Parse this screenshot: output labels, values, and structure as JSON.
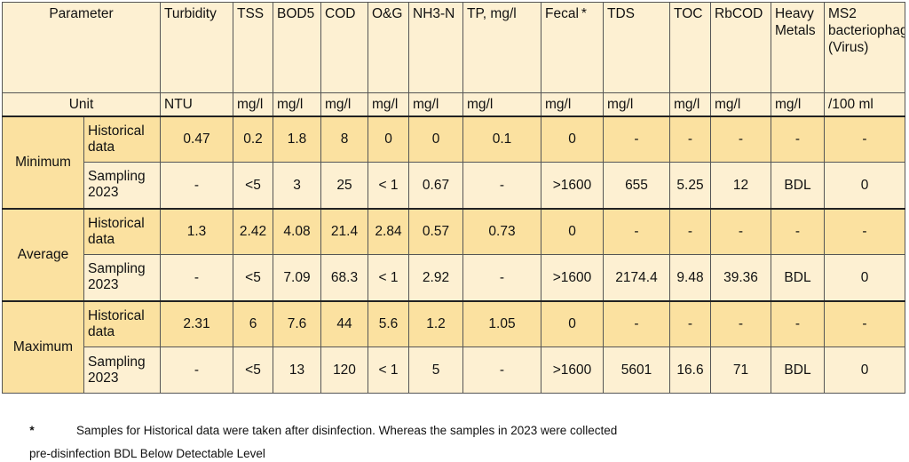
{
  "header": {
    "parameter": "Parameter",
    "columns": [
      "Turbidity",
      "TSS",
      "BOD5",
      "COD",
      "O&G",
      "NH3-N",
      "TP, mg/l",
      "Fecal",
      "TDS",
      "TOC",
      "RbCOD",
      "Heavy Metals",
      "MS2 bacteriophage (Virus)"
    ],
    "fecal_mark": "*",
    "unit_label": "Unit",
    "units": [
      "NTU",
      "mg/l",
      "mg/l",
      "mg/l",
      "mg/l",
      "mg/l",
      "mg/l",
      "mg/l",
      "mg/l",
      "mg/l",
      "mg/l",
      "mg/l",
      "/100 ml"
    ]
  },
  "groups": [
    {
      "label": "Minimum",
      "rows": [
        {
          "label": "Historical data",
          "values": [
            "0.47",
            "0.2",
            "1.8",
            "8",
            "0",
            "0",
            "0.1",
            "0",
            "-",
            "-",
            "-",
            "-",
            "-"
          ]
        },
        {
          "label": "Sampling 2023",
          "values": [
            "-",
            "<5",
            "3",
            "25",
            "< 1",
            "0.67",
            "-",
            ">1600",
            "655",
            "5.25",
            "12",
            "BDL",
            "0"
          ]
        }
      ]
    },
    {
      "label": "Average",
      "rows": [
        {
          "label": "Historical data",
          "values": [
            "1.3",
            "2.42",
            "4.08",
            "21.4",
            "2.84",
            "0.57",
            "0.73",
            "0",
            "-",
            "-",
            "-",
            "-",
            "-"
          ]
        },
        {
          "label": "Sampling 2023",
          "values": [
            "-",
            "<5",
            "7.09",
            "68.3",
            "< 1",
            "2.92",
            "-",
            ">1600",
            "2174.4",
            "9.48",
            "39.36",
            "BDL",
            "0"
          ]
        }
      ]
    },
    {
      "label": "Maximum",
      "rows": [
        {
          "label": "Historical data",
          "values": [
            "2.31",
            "6",
            "7.6",
            "44",
            "5.6",
            "1.2",
            "1.05",
            "0",
            "-",
            "-",
            "-",
            "-",
            "-"
          ]
        },
        {
          "label": "Sampling 2023",
          "values": [
            "-",
            "<5",
            "13",
            "120",
            "< 1",
            "5",
            "-",
            ">1600",
            "5601",
            "16.6",
            "71",
            "BDL",
            "0"
          ]
        }
      ]
    }
  ],
  "footnote": {
    "mark": "*",
    "line1": "Samples for Historical data were taken after disinfection. Whereas the samples in 2023 were collected",
    "line2": "pre-disinfection BDL    Below Detectable Level"
  }
}
